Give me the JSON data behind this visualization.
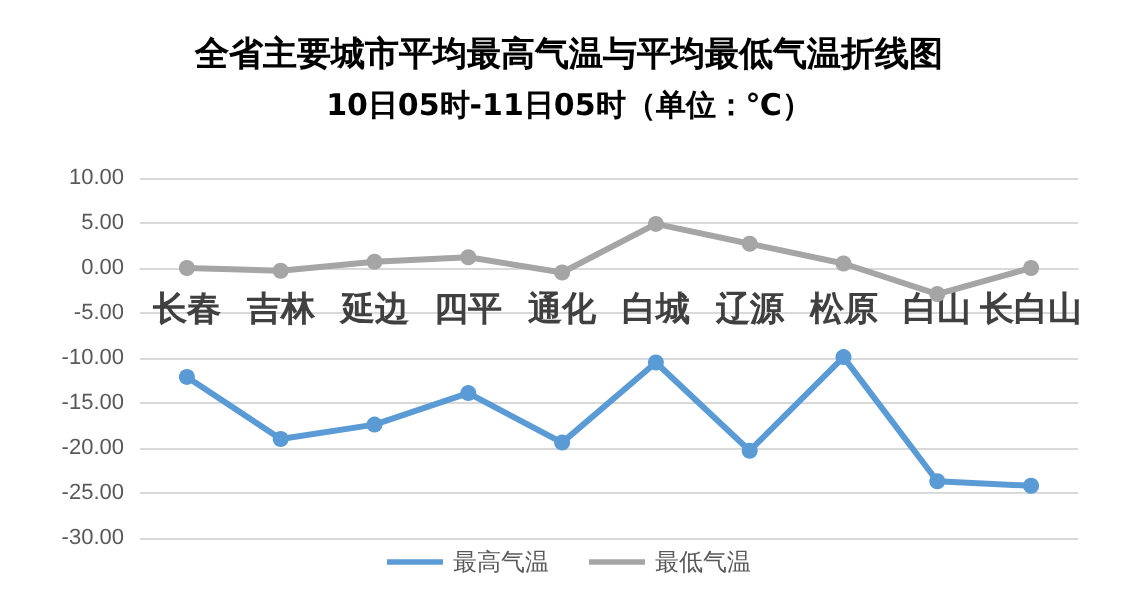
{
  "chart_data": {
    "type": "line",
    "title": "全省主要城市平均最高气温与平均最低气温折线图",
    "subtitle": "10日05时-11日05时（单位：℃）",
    "categories": [
      "长春",
      "吉林",
      "延边",
      "四平",
      "通化",
      "白城",
      "辽源",
      "松原",
      "白山",
      "长白山"
    ],
    "series": [
      {
        "name": "最高气温",
        "color": "#5b9bd5",
        "values": [
          -12.1,
          -19.0,
          -17.4,
          -13.9,
          -19.4,
          -10.5,
          -20.3,
          -9.9,
          -23.7,
          -24.2
        ]
      },
      {
        "name": "最低气温",
        "color": "#a5a5a5",
        "values": [
          0,
          -0.3,
          0.7,
          1.2,
          -0.5,
          4.9,
          2.7,
          0.5,
          -2.9,
          0
        ]
      }
    ],
    "ylim": [
      -30,
      10
    ],
    "yticks": [
      {
        "value": 10,
        "label": "10.00"
      },
      {
        "value": 5,
        "label": "5.00"
      },
      {
        "value": 0,
        "label": "0.00"
      },
      {
        "value": -5,
        "label": "-5.00"
      },
      {
        "value": -10,
        "label": "-10.00"
      },
      {
        "value": -15,
        "label": "-15.00"
      },
      {
        "value": -20,
        "label": "-20.00"
      },
      {
        "value": -25,
        "label": "-25.00"
      },
      {
        "value": -30,
        "label": "-30.00"
      }
    ],
    "grid": true,
    "legend": "bottom",
    "marker": "circle",
    "line_style": "solid"
  }
}
